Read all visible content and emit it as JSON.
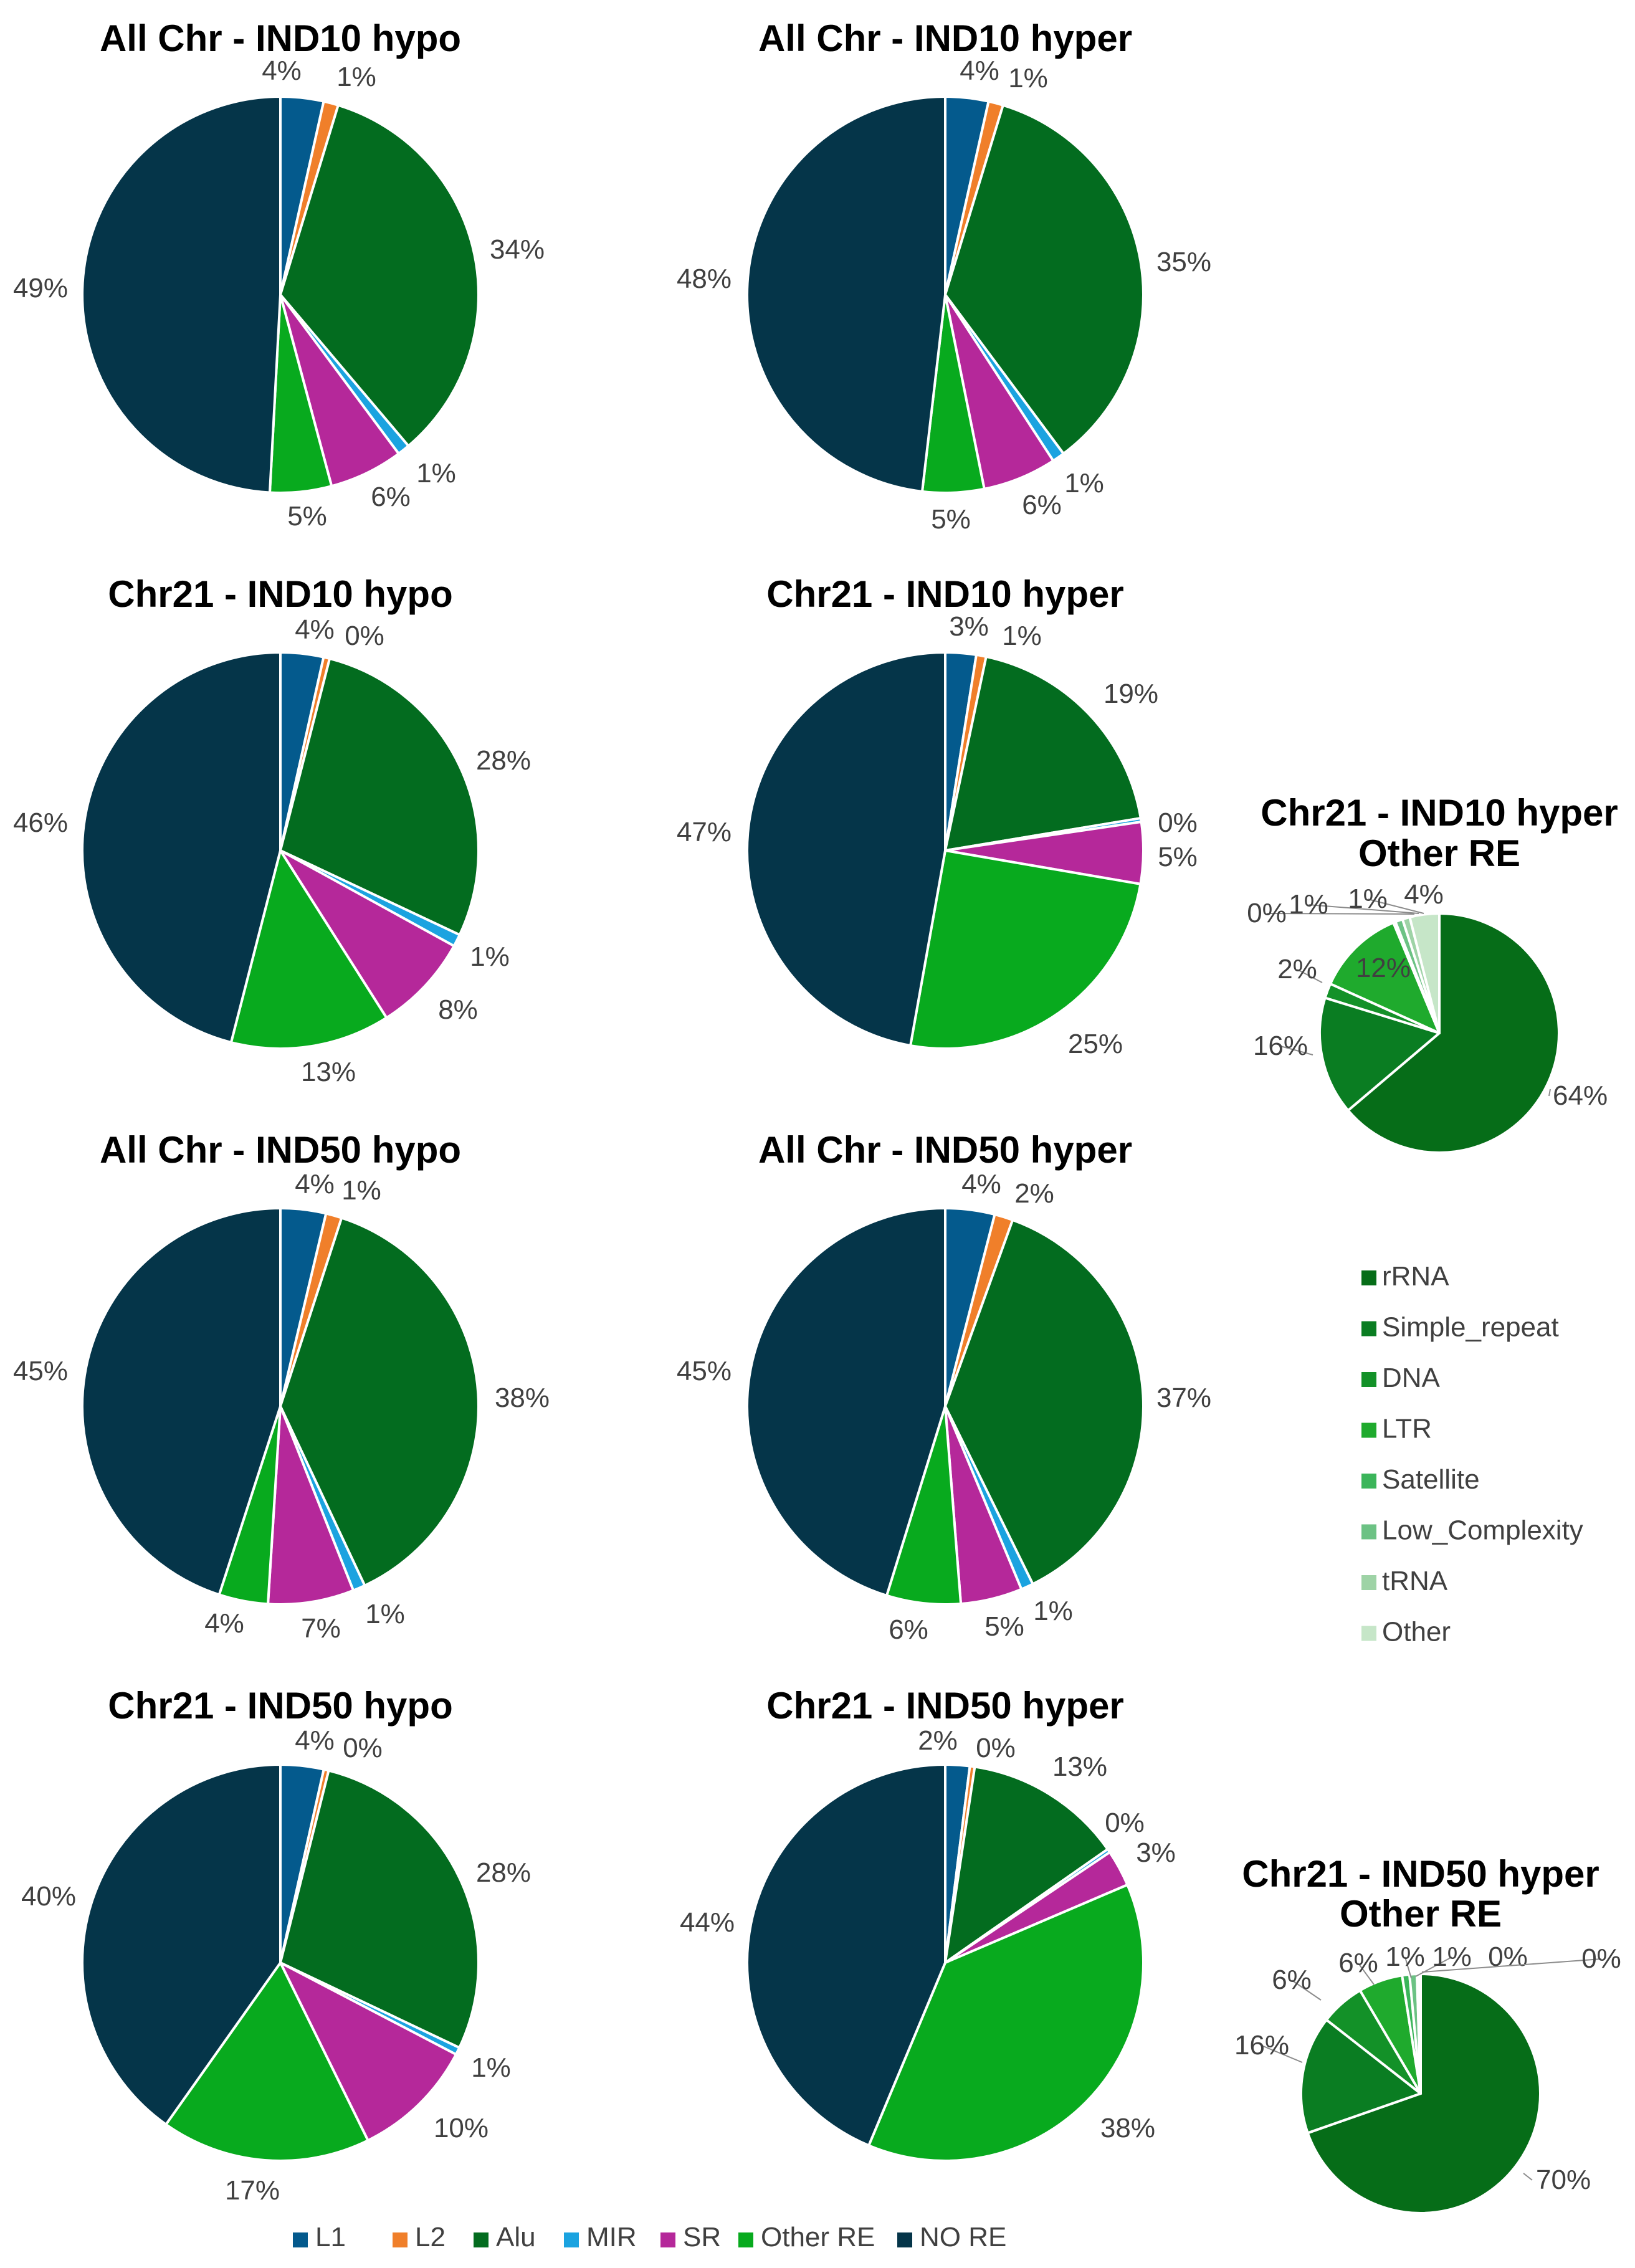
{
  "colors": {
    "L1": "#045a8d",
    "L2": "#f07f2a",
    "Alu": "#036c1f",
    "MIR": "#1ba3e0",
    "SR": "#b5289a",
    "Other RE": "#08aa1e",
    "NO RE": "#053549",
    "rRNA": "#066d18",
    "Simple_repeat": "#0a7d22",
    "DNA": "#139128",
    "LTR": "#1faa2d",
    "Satellite": "#3bb55a",
    "Low_Complexity": "#6cc284",
    "tRNA": "#9ed3a6",
    "Other": "#c6e6c8",
    "leader": "#8c8c8c"
  },
  "legend_main": [
    "L1",
    "L2",
    "Alu",
    "MIR",
    "SR",
    "Other RE",
    "NO RE"
  ],
  "legend_other": [
    "rRNA",
    "Simple_repeat",
    "DNA",
    "LTR",
    "Satellite",
    "Low_Complexity",
    "tRNA",
    "Other"
  ],
  "chart_data": [
    {
      "type": "pie",
      "title": "All Chr - IND10 hypo",
      "categories": [
        "L1",
        "L2",
        "Alu",
        "MIR",
        "SR",
        "Other RE",
        "NO RE"
      ],
      "values": [
        3.5,
        1.2,
        34,
        1,
        6,
        5,
        49
      ],
      "labels": [
        "4%",
        "1%",
        "34%",
        "1%",
        "6%",
        "5%",
        "49%"
      ]
    },
    {
      "type": "pie",
      "title": "All Chr - IND10 hyper",
      "categories": [
        "L1",
        "L2",
        "Alu",
        "MIR",
        "SR",
        "Other RE",
        "NO RE"
      ],
      "values": [
        3.5,
        1.2,
        35,
        1,
        6,
        5,
        48
      ],
      "labels": [
        "4%",
        "1%",
        "35%",
        "1%",
        "6%",
        "5%",
        "48%"
      ]
    },
    {
      "type": "pie",
      "title": "Chr21 - IND10 hypo",
      "categories": [
        "L1",
        "L2",
        "Alu",
        "MIR",
        "SR",
        "Other RE",
        "NO RE"
      ],
      "values": [
        3.5,
        0.5,
        28,
        1,
        8,
        13,
        46
      ],
      "labels": [
        "4%",
        "0%",
        "28%",
        "1%",
        "8%",
        "13%",
        "46%"
      ]
    },
    {
      "type": "pie",
      "title": "Chr21 - IND10 hyper",
      "categories": [
        "L1",
        "L2",
        "Alu",
        "MIR",
        "SR",
        "Other RE",
        "NO RE"
      ],
      "values": [
        2.5,
        0.8,
        19,
        0.3,
        5,
        25,
        47
      ],
      "labels": [
        "3%",
        "1%",
        "19%",
        "0%",
        "5%",
        "25%",
        "47%"
      ]
    },
    {
      "type": "pie",
      "title": "All Chr - IND50 hypo",
      "categories": [
        "L1",
        "L2",
        "Alu",
        "MIR",
        "SR",
        "Other RE",
        "NO RE"
      ],
      "values": [
        3.7,
        1.3,
        38,
        1,
        7,
        4,
        45
      ],
      "labels": [
        "4%",
        "1%",
        "38%",
        "1%",
        "7%",
        "4%",
        "45%"
      ]
    },
    {
      "type": "pie",
      "title": "All Chr - IND50 hyper",
      "categories": [
        "L1",
        "L2",
        "Alu",
        "MIR",
        "SR",
        "Other RE",
        "NO RE"
      ],
      "values": [
        4,
        1.5,
        37,
        1,
        5,
        6,
        45
      ],
      "labels": [
        "4%",
        "2%",
        "37%",
        "1%",
        "5%",
        "6%",
        "45%"
      ]
    },
    {
      "type": "pie",
      "title": "Chr21 - IND50 hypo",
      "categories": [
        "L1",
        "L2",
        "Alu",
        "MIR",
        "SR",
        "Other RE",
        "NO RE"
      ],
      "values": [
        3.5,
        0.4,
        28,
        0.6,
        10,
        17,
        40
      ],
      "labels": [
        "4%",
        "0%",
        "28%",
        "1%",
        "10%",
        "17%",
        "40%"
      ]
    },
    {
      "type": "pie",
      "title": "Chr21 - IND50 hyper",
      "categories": [
        "L1",
        "L2",
        "Alu",
        "MIR",
        "SR",
        "Other RE",
        "NO RE"
      ],
      "values": [
        2,
        0.4,
        13,
        0.3,
        3,
        38,
        44
      ],
      "labels": [
        "2%",
        "0%",
        "13%",
        "0%",
        "3%",
        "38%",
        "44%"
      ]
    },
    {
      "type": "pie",
      "title": "Chr21 - IND10 hyper",
      "subtitle": "Other RE",
      "categories": [
        "rRNA",
        "Simple_repeat",
        "DNA",
        "LTR",
        "Satellite",
        "Low_Complexity",
        "tRNA",
        "Other"
      ],
      "values": [
        64,
        16,
        2,
        12,
        0.3,
        1,
        1,
        4
      ],
      "labels": [
        "64%",
        "16%",
        "2%",
        "12%",
        "0%",
        "1%",
        "1%",
        "4%"
      ]
    },
    {
      "type": "pie",
      "title": "Chr21 - IND50 hyper",
      "subtitle": "Other RE",
      "categories": [
        "rRNA",
        "Simple_repeat",
        "DNA",
        "LTR",
        "Satellite",
        "Low_Complexity",
        "tRNA",
        "Other"
      ],
      "values": [
        70,
        16,
        6,
        6,
        1,
        1,
        0.3,
        0.2
      ],
      "labels": [
        "70%",
        "16%",
        "6%",
        "6%",
        "1%",
        "1%",
        "0%",
        "0%"
      ]
    }
  ]
}
